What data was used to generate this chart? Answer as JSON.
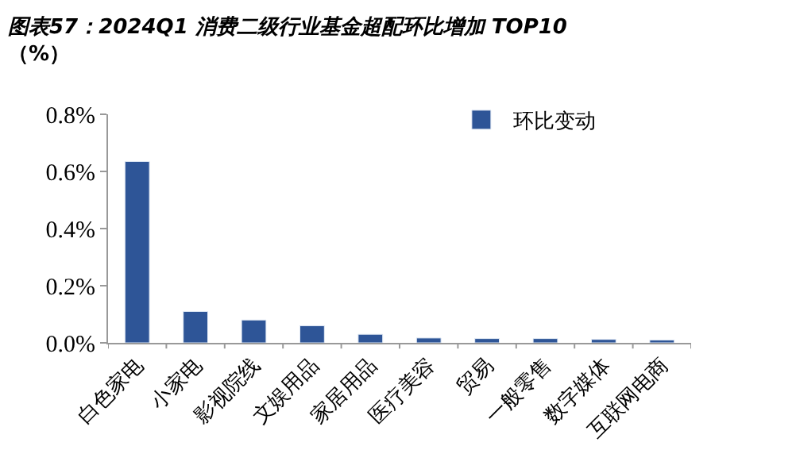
{
  "chart_data": {
    "type": "bar",
    "title": "图表57：2024Q1 消费二级行业基金超配环比增加 TOP10",
    "subtitle": "（%）",
    "categories": [
      "白色家电",
      "小家电",
      "影视院线",
      "文娱用品",
      "家居用品",
      "医疗美容",
      "贸易",
      "一般零售",
      "数字媒体",
      "互联网电商"
    ],
    "series": [
      {
        "name": "环比变动",
        "color": "#2e5597",
        "values": [
          0.635,
          0.11,
          0.08,
          0.06,
          0.03,
          0.017,
          0.015,
          0.015,
          0.012,
          0.01
        ]
      }
    ],
    "ylim": [
      0,
      0.8
    ],
    "yticks": [
      {
        "value": 0,
        "label": "0.0%"
      },
      {
        "value": 0.2,
        "label": "0.2%"
      },
      {
        "value": 0.4,
        "label": "0.4%"
      },
      {
        "value": 0.6,
        "label": "0.6%"
      },
      {
        "value": 0.8,
        "label": "0.8%"
      }
    ],
    "legend": "top right"
  }
}
